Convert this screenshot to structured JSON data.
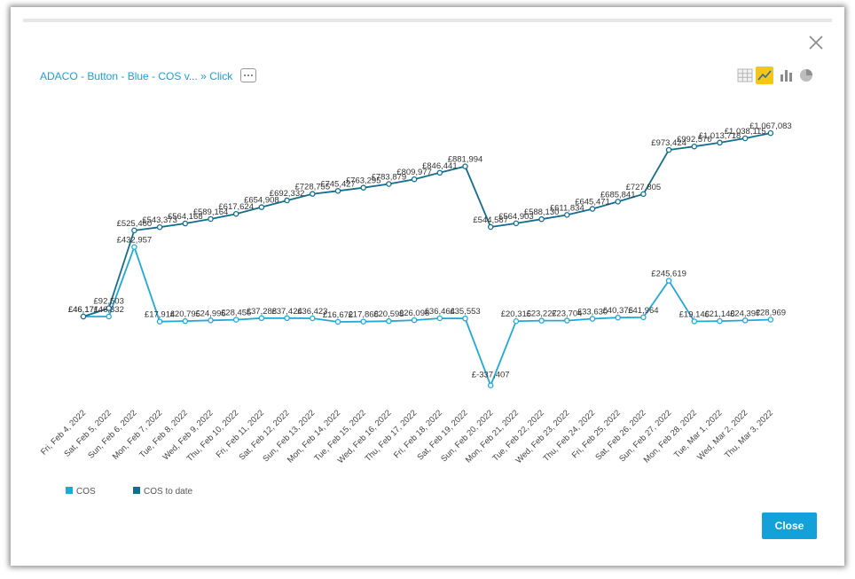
{
  "breadcrumb": {
    "metric": "ADACO - Button - Blue - COS v...",
    "separator": "»",
    "attribute": "Click"
  },
  "toolbar": {
    "icons": [
      "table-icon",
      "line-chart-icon",
      "bar-chart-icon",
      "pie-chart-icon"
    ],
    "active": "line-chart-icon"
  },
  "footer": {
    "close_label": "Close"
  },
  "colors": {
    "cos": "#21a8d8",
    "cos_to_date": "#136d8c",
    "accent": "#14a0d8",
    "active_icon_bg": "#f5c518"
  },
  "chart_data": {
    "type": "line",
    "x": [
      "Fri, Feb 4, 2022",
      "Sat, Feb 5, 2022",
      "Sun, Feb 6, 2022",
      "Mon, Feb 7, 2022",
      "Tue, Feb 8, 2022",
      "Wed, Feb 9, 2022",
      "Thu, Feb 10, 2022",
      "Fri, Feb 11, 2022",
      "Sat, Feb 12, 2022",
      "Sun, Feb 13, 2022",
      "Mon, Feb 14, 2022",
      "Tue, Feb 15, 2022",
      "Wed, Feb 16, 2022",
      "Thu, Feb 17, 2022",
      "Fri, Feb 18, 2022",
      "Sat, Feb 19, 2022",
      "Sun, Feb 20, 2022",
      "Mon, Feb 21, 2022",
      "Tue, Feb 22, 2022",
      "Wed, Feb 23, 2022",
      "Thu, Feb 24, 2022",
      "Fri, Feb 25, 2022",
      "Sat, Feb 26, 2022",
      "Sun, Feb 27, 2022",
      "Mon, Feb 28, 2022",
      "Tue, Mar 1, 2022",
      "Wed, Mar 2, 2022",
      "Thu, Mar 3, 2022"
    ],
    "series": [
      {
        "name": "COS",
        "values": [
          46171,
          46332,
          432957,
          17914,
          20795,
          24996,
          28455,
          37288,
          37424,
          36423,
          16672,
          17868,
          20593,
          26098,
          36464,
          35553,
          -337407,
          20316,
          23227,
          23704,
          33630,
          40376,
          41964,
          245619,
          19146,
          21148,
          24397,
          28969
        ],
        "labels": [
          "£46,171",
          "£46,332",
          "£432,957",
          "£17,914",
          "£20,795",
          "£24,996",
          "£28,455",
          "£37,288",
          "£37,424",
          "£36,423",
          "£16,672",
          "£17,868",
          "£20,593",
          "£26,098",
          "£36,464",
          "£35,553",
          "£-337,407",
          "£20,316",
          "£23,227",
          "£23,704",
          "£33,630",
          "£40,376",
          "£41,964",
          "£245,619",
          "£19,146",
          "£21,148",
          "£24,397",
          "£28,969"
        ]
      },
      {
        "name": "COS to date",
        "values": [
          46171,
          92503,
          525460,
          543373,
          564168,
          589164,
          617624,
          654908,
          692332,
          728755,
          745427,
          763295,
          783879,
          809977,
          846441,
          881994,
          544587,
          564903,
          588130,
          611834,
          645471,
          685841,
          727805,
          973424,
          992570,
          1013718,
          1038115,
          1067083
        ],
        "labels": [
          "£46,171",
          "£92,503",
          "£525,460",
          "£543,373",
          "£564,168",
          "£589,164",
          "£617,624",
          "£654,908",
          "£692,332",
          "£728,755",
          "£745,427",
          "£763,295",
          "£783,879",
          "£809,977",
          "£846,441",
          "£881,994",
          "£544,587",
          "£564,903",
          "£588,130",
          "£611,834",
          "£645,471",
          "£685,841",
          "£727,805",
          "£973,424",
          "£992,570",
          "£1,013,718",
          "£1,038,115",
          "£1,067,083"
        ]
      }
    ],
    "ylim": [
      -400000,
      1100000
    ],
    "grid": false,
    "legend": "bottom-left"
  }
}
